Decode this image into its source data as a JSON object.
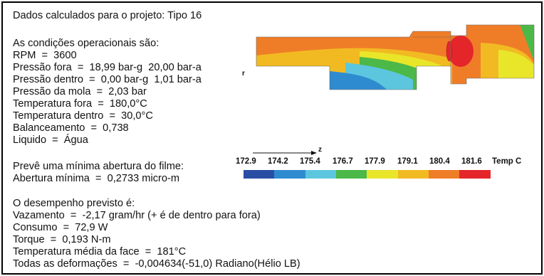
{
  "report": {
    "title": "Dados calculados para o projeto: Tipo 16",
    "conditions_heading": "As condições operacionais são:",
    "rpm": "RPM  =  3600",
    "pressure_out": "Pressão fora  =  18,99 bar-g  20,00 bar-a",
    "pressure_in": "Pressão dentro  =  0,00 bar-g  1,01 bar-a",
    "spring_pressure": "Pressão da mola  =  2,03 bar",
    "temp_out": "Temperatura fora  =  180,0°C",
    "temp_in": "Temperatura dentro  =  30,0°C",
    "balance": "Balanceamento  =  0,738",
    "liquid": "Liquido  =  Água",
    "film_heading": "Prevê uma mínima abertura do filme:",
    "min_gap": "Abertura mínima  =  0,2733 micro-m",
    "performance_heading": "O desempenho previsto é:",
    "leakage": "Vazamento  =  -2,17 gram/hr (+ é de dentro para fora)",
    "consumption": "Consumo  =  72,9 W",
    "torque": "Torque  =  0,193 N-m",
    "face_temp": "Temperatura média da face  =  181°C",
    "deformations": "Todas as deformações  =  -0,004634(-51,0) Radiano(Hélio LB)"
  },
  "plot": {
    "axis_r": "r",
    "axis_z": "z",
    "legend_unit": "Temp C",
    "legend_values": [
      "172.9",
      "174.2",
      "175.4",
      "176.7",
      "177.9",
      "179.1",
      "180.4",
      "181.6"
    ],
    "legend_colors": [
      "#2a4ea3",
      "#2f8bd0",
      "#5cc6df",
      "#4cb848",
      "#e9e62a",
      "#f2ba22",
      "#ef7d28",
      "#e4262b"
    ]
  }
}
